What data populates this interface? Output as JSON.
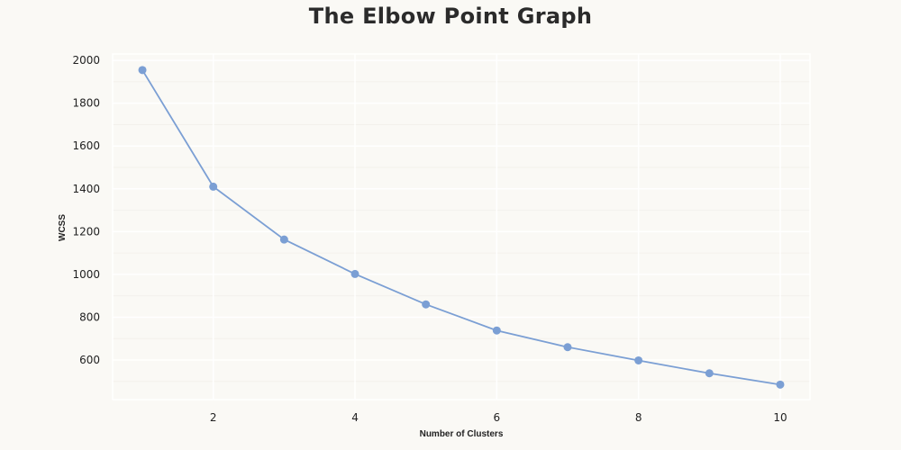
{
  "chart_data": {
    "type": "line",
    "title": "The Elbow Point Graph",
    "xlabel": "Number of Clusters",
    "ylabel": "WCSS",
    "x": [
      1,
      2,
      3,
      4,
      5,
      6,
      7,
      8,
      9,
      10
    ],
    "series": [
      {
        "values": [
          1955,
          1410,
          1163,
          1002,
          860,
          738,
          660,
          598,
          538,
          485
        ]
      }
    ],
    "xticks": [
      2,
      4,
      6,
      8,
      10
    ],
    "yticks": [
      600,
      800,
      1000,
      1200,
      1400,
      1600,
      1800,
      2000
    ],
    "xlim": [
      0.58,
      10.42
    ],
    "ylim": [
      415,
      2030
    ],
    "grid": true,
    "line_color": "#7b9fd4",
    "grid_color": "#ffffff"
  }
}
